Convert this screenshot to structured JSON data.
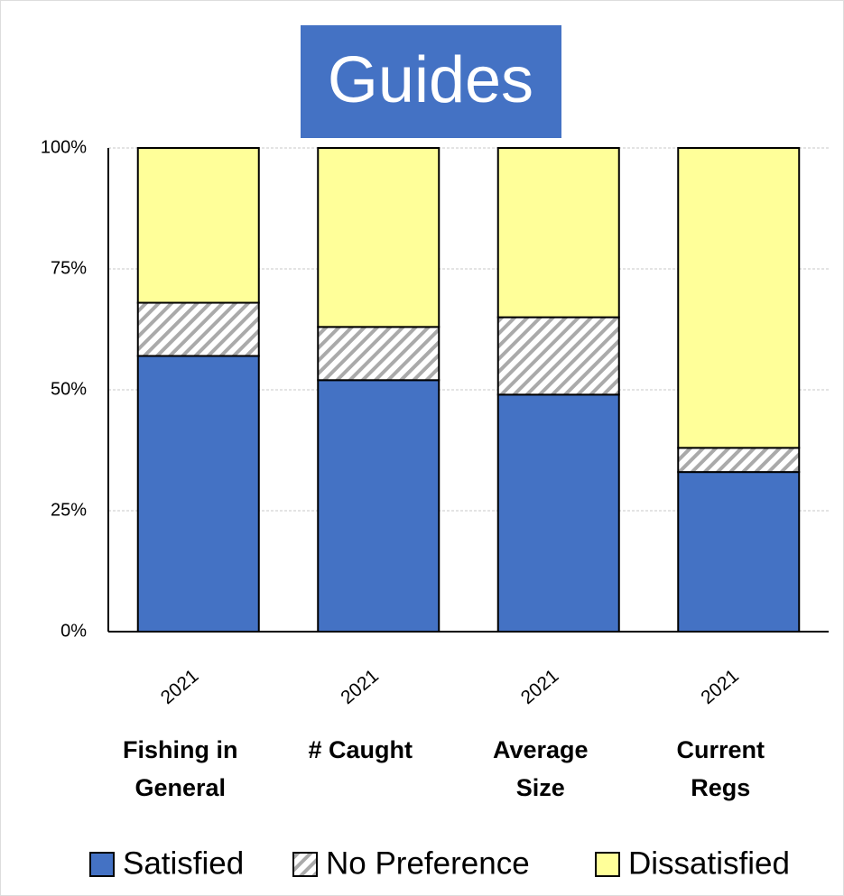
{
  "chart_data": {
    "type": "stacked_bar",
    "title": "Guides",
    "categories": [
      "2021",
      "2021",
      "2021",
      "2021"
    ],
    "groups": [
      "Fishing in General",
      "# Caught",
      "Average Size",
      "Current Regs"
    ],
    "series": [
      {
        "name": "Satisfied",
        "color": "#4472c4",
        "values": [
          57,
          52,
          49,
          33
        ]
      },
      {
        "name": "No Preference",
        "color": "hatch",
        "values": [
          11,
          11,
          16,
          5
        ]
      },
      {
        "name": "Dissatisfied",
        "color": "#ffff99",
        "values": [
          32,
          37,
          35,
          62
        ]
      }
    ],
    "ylim": [
      0,
      100
    ],
    "yticks": [
      {
        "value": 0,
        "label": "0%"
      },
      {
        "value": 25,
        "label": "25%"
      },
      {
        "value": 50,
        "label": "50%"
      },
      {
        "value": 75,
        "label": "75%"
      },
      {
        "value": 100,
        "label": "100%"
      }
    ],
    "grid": true,
    "legend": "bottom"
  }
}
